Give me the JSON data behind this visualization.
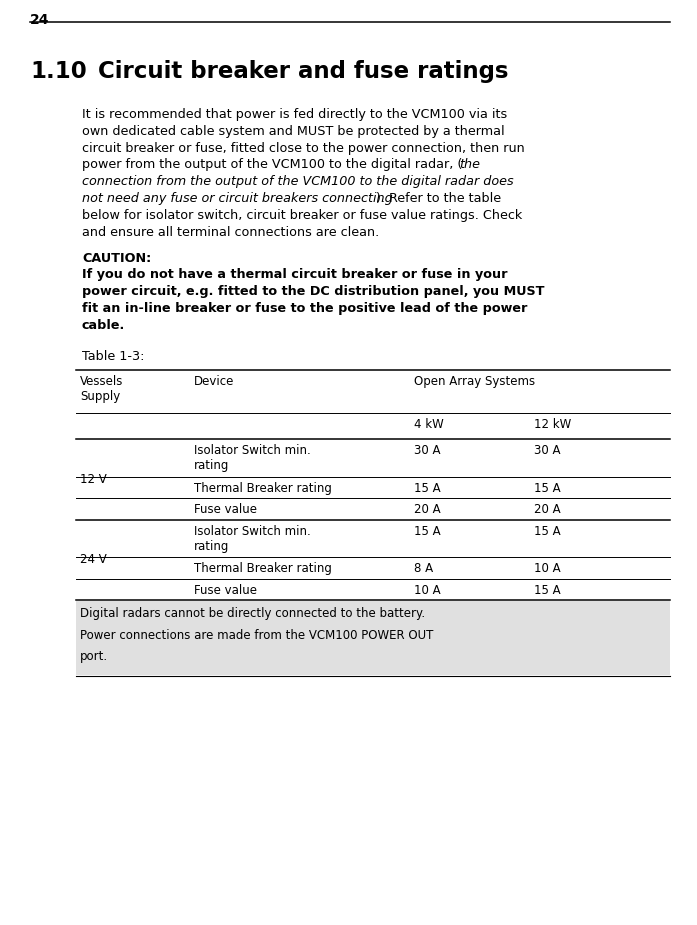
{
  "page_number": "24",
  "title": "1.10 Circuit breaker and fuse ratings",
  "body_lines": [
    {
      "text": "It is recommended that power is fed directly to the VCM100 via its",
      "style": "normal"
    },
    {
      "text": "own dedicated cable system and MUST be protected by a thermal",
      "style": "normal"
    },
    {
      "text": "circuit breaker or fuse, fitted close to the power connection, then run",
      "style": "normal"
    },
    {
      "text": "power from the output of the VCM100 to the digital radar, (",
      "style": "normal",
      "continue_italic": "the"
    },
    {
      "text": "connection from the output of the VCM100 to the digital radar does",
      "style": "italic"
    },
    {
      "text": "not need any fuse or circuit breakers connecting",
      "style": "italic",
      "continue_normal": "). Refer to the table"
    },
    {
      "text": "below for isolator switch, circuit breaker or fuse value ratings. Check",
      "style": "normal"
    },
    {
      "text": "and ensure all terminal connections are clean.",
      "style": "normal"
    }
  ],
  "caution_label": "CAUTION:",
  "caution_lines": [
    "If you do not have a thermal circuit breaker or fuse in your",
    "power circuit, e.g. fitted to the DC distribution panel, you MUST",
    "fit an in-line breaker or fuse to the positive lead of the power",
    "cable."
  ],
  "table_label": "Table 1-3:",
  "col1_header": "Vessels\nSupply",
  "col2_header": "Device",
  "col3_header": "Open Array Systems",
  "col3a": "4 kW",
  "col3b": "12 kW",
  "table_rows": [
    {
      "voltage": "12 V",
      "device": "Isolator Switch min.\nrating",
      "val1": "30 A",
      "val2": "30 A"
    },
    {
      "voltage": "",
      "device": "Thermal Breaker rating",
      "val1": "15 A",
      "val2": "15 A"
    },
    {
      "voltage": "",
      "device": "Fuse value",
      "val1": "20 A",
      "val2": "20 A"
    },
    {
      "voltage": "24 V",
      "device": "Isolator Switch min.\nrating",
      "val1": "15 A",
      "val2": "15 A"
    },
    {
      "voltage": "",
      "device": "Thermal Breaker rating",
      "val1": "8 A",
      "val2": "10 A"
    },
    {
      "voltage": "",
      "device": "Fuse value",
      "val1": "10 A",
      "val2": "15 A"
    }
  ],
  "footnote_lines": [
    "Digital radars cannot be directly connected to the battery.",
    "Power connections are made from the VCM100 POWER OUT",
    "port."
  ],
  "bg_color": "#ffffff",
  "text_color": "#000000",
  "footnote_bg": "#e0e0e0",
  "dpi": 100
}
